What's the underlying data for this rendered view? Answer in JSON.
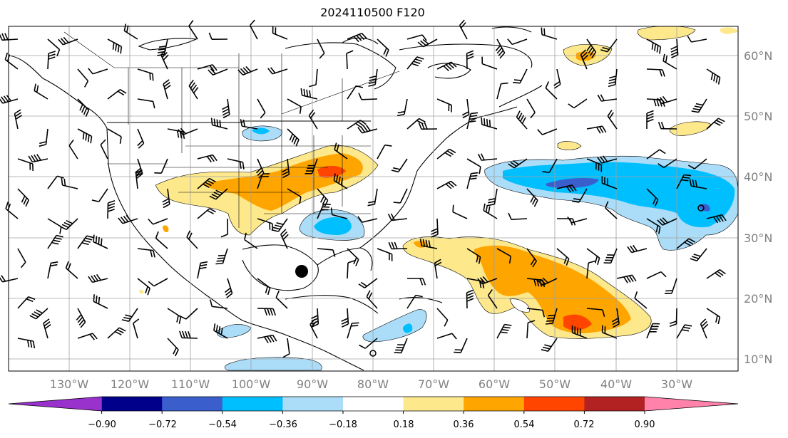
{
  "title": "2024110500 F120",
  "lon_labels": [
    "130°W",
    "120°W",
    "110°W",
    "100°W",
    "90°W",
    "80°W",
    "70°W",
    "60°W",
    "50°W",
    "40°W",
    "30°W"
  ],
  "lat_labels": [
    "60°N",
    "50°N",
    "40°N",
    "30°N",
    "20°N",
    "10°N"
  ],
  "colorbar": {
    "ticks": [
      "−0.90",
      "−0.72",
      "−0.54",
      "−0.36",
      "−0.18",
      "0.18",
      "0.36",
      "0.54",
      "0.72",
      "0.90"
    ],
    "colors": [
      "#9932cc",
      "#00008b",
      "#3a5fcd",
      "#00bfff",
      "#abdcf8",
      "#ffffff",
      "#fde88c",
      "#ffa500",
      "#ff4500",
      "#b22222",
      "#ff82ab"
    ]
  }
}
